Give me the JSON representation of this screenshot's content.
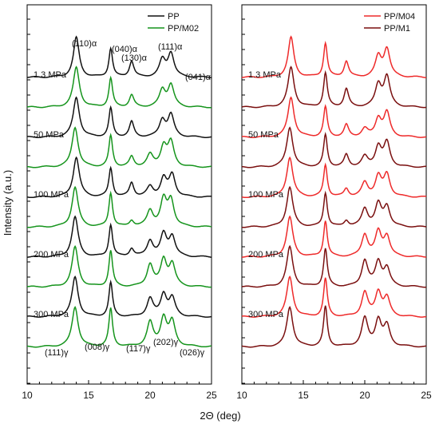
{
  "chart_data": {
    "type": "line",
    "ylabel": "Intensity (a.u.)",
    "xlabel": "2Θ (deg)",
    "xlim": [
      10,
      25
    ],
    "x_ticks": [
      "10",
      "15",
      "20",
      "25"
    ],
    "grid": false,
    "pressure_labels": [
      "1.3 MPa",
      "50 MPa",
      "100 MPa",
      "200 MPa",
      "300 MPa"
    ],
    "alpha_peaks": [
      {
        "label": "(110)α",
        "x": 14.0
      },
      {
        "label": "(040)α",
        "x": 16.9
      },
      {
        "label": "(130)α",
        "x": 18.5
      },
      {
        "label": "(111)α",
        "x": 21.2
      },
      {
        "label": "(041)α",
        "x": 21.9
      }
    ],
    "gamma_peaks": [
      {
        "label": "(111)γ",
        "x": 13.9
      },
      {
        "label": "(008)γ",
        "x": 16.8
      },
      {
        "label": "(117)γ",
        "x": 20.1
      },
      {
        "label": "(202)γ",
        "x": 21.2
      },
      {
        "label": "(026)γ",
        "x": 21.8
      }
    ],
    "panels": [
      {
        "legend_position": "top-right",
        "series": [
          {
            "name": "PP",
            "color": "#111111"
          },
          {
            "name": "PP/M02",
            "color": "#15941c"
          }
        ],
        "traces": [
          {
            "series": "PP",
            "pressure": "1.3 MPa",
            "peaks": [
              [
                14.0,
                1.0,
                0.28
              ],
              [
                16.8,
                0.72,
                0.18
              ],
              [
                18.5,
                0.4,
                0.22
              ],
              [
                21.0,
                0.42,
                0.3
              ],
              [
                21.7,
                0.6,
                0.3
              ]
            ]
          },
          {
            "series": "PP/M02",
            "pressure": "",
            "peaks": [
              [
                14.0,
                1.0,
                0.3
              ],
              [
                16.8,
                0.72,
                0.18
              ],
              [
                18.5,
                0.3,
                0.22
              ],
              [
                21.0,
                0.42,
                0.3
              ],
              [
                21.7,
                0.55,
                0.3
              ]
            ]
          },
          {
            "series": "PP",
            "pressure": "50 MPa",
            "peaks": [
              [
                14.0,
                1.0,
                0.3
              ],
              [
                16.8,
                0.72,
                0.18
              ],
              [
                18.5,
                0.38,
                0.22
              ],
              [
                21.0,
                0.42,
                0.3
              ],
              [
                21.7,
                0.55,
                0.3
              ]
            ]
          },
          {
            "series": "PP/M02",
            "pressure": "",
            "peaks": [
              [
                13.9,
                1.0,
                0.3
              ],
              [
                16.8,
                0.78,
                0.18
              ],
              [
                18.5,
                0.25,
                0.22
              ],
              [
                20.0,
                0.3,
                0.3
              ],
              [
                21.1,
                0.5,
                0.3
              ],
              [
                21.7,
                0.6,
                0.3
              ]
            ]
          },
          {
            "series": "PP",
            "pressure": "100 MPa",
            "peaks": [
              [
                14.0,
                1.0,
                0.3
              ],
              [
                16.8,
                0.72,
                0.18
              ],
              [
                18.5,
                0.35,
                0.22
              ],
              [
                20.0,
                0.25,
                0.3
              ],
              [
                21.1,
                0.45,
                0.3
              ],
              [
                21.8,
                0.55,
                0.3
              ]
            ]
          },
          {
            "series": "PP/M02",
            "pressure": "",
            "peaks": [
              [
                13.9,
                1.0,
                0.3
              ],
              [
                16.8,
                0.85,
                0.18
              ],
              [
                18.5,
                0.15,
                0.22
              ],
              [
                20.0,
                0.4,
                0.3
              ],
              [
                21.1,
                0.65,
                0.3
              ],
              [
                21.7,
                0.65,
                0.3
              ]
            ]
          },
          {
            "series": "PP",
            "pressure": "200 MPa",
            "peaks": [
              [
                13.9,
                1.0,
                0.3
              ],
              [
                16.8,
                0.8,
                0.18
              ],
              [
                18.5,
                0.2,
                0.22
              ],
              [
                20.0,
                0.4,
                0.3
              ],
              [
                21.1,
                0.55,
                0.3
              ],
              [
                21.8,
                0.5,
                0.3
              ]
            ]
          },
          {
            "series": "PP/M02",
            "pressure": "",
            "peaks": [
              [
                13.9,
                1.0,
                0.3
              ],
              [
                16.8,
                0.9,
                0.18
              ],
              [
                20.0,
                0.55,
                0.3
              ],
              [
                21.1,
                0.65,
                0.3
              ],
              [
                21.8,
                0.55,
                0.3
              ]
            ]
          },
          {
            "series": "PP",
            "pressure": "300 MPa",
            "peaks": [
              [
                13.9,
                1.0,
                0.3
              ],
              [
                16.8,
                0.85,
                0.18
              ],
              [
                20.0,
                0.45,
                0.3
              ],
              [
                21.1,
                0.55,
                0.3
              ],
              [
                21.8,
                0.45,
                0.3
              ]
            ]
          },
          {
            "series": "PP/M02",
            "pressure": "",
            "peaks": [
              [
                13.9,
                1.0,
                0.3
              ],
              [
                16.8,
                0.95,
                0.18
              ],
              [
                20.0,
                0.6,
                0.3
              ],
              [
                21.1,
                0.7,
                0.3
              ],
              [
                21.8,
                0.6,
                0.3
              ]
            ]
          }
        ]
      },
      {
        "legend_position": "top-right",
        "series": [
          {
            "name": "PP/M04",
            "color": "#ee2a2a"
          },
          {
            "name": "PP/M1",
            "color": "#7a0f0f"
          }
        ],
        "traces": [
          {
            "series": "PP/M04",
            "pressure": "1.3 MPa",
            "peaks": [
              [
                14.0,
                1.0,
                0.28
              ],
              [
                16.8,
                0.85,
                0.18
              ],
              [
                18.5,
                0.4,
                0.22
              ],
              [
                21.1,
                0.5,
                0.3
              ],
              [
                21.8,
                0.7,
                0.3
              ]
            ]
          },
          {
            "series": "PP/M1",
            "pressure": "",
            "peaks": [
              [
                14.0,
                1.0,
                0.3
              ],
              [
                16.8,
                0.85,
                0.18
              ],
              [
                18.5,
                0.45,
                0.22
              ],
              [
                21.1,
                0.55,
                0.3
              ],
              [
                21.8,
                0.75,
                0.3
              ]
            ]
          },
          {
            "series": "PP/M04",
            "pressure": "50 MPa",
            "peaks": [
              [
                14.0,
                1.0,
                0.3
              ],
              [
                16.8,
                0.75,
                0.18
              ],
              [
                18.5,
                0.3,
                0.22
              ],
              [
                20.0,
                0.2,
                0.3
              ],
              [
                21.1,
                0.45,
                0.3
              ],
              [
                21.8,
                0.6,
                0.3
              ]
            ]
          },
          {
            "series": "PP/M1",
            "pressure": "",
            "peaks": [
              [
                13.9,
                1.0,
                0.3
              ],
              [
                16.8,
                0.8,
                0.18
              ],
              [
                18.5,
                0.3,
                0.22
              ],
              [
                20.0,
                0.25,
                0.3
              ],
              [
                21.1,
                0.5,
                0.3
              ],
              [
                21.8,
                0.6,
                0.3
              ]
            ]
          },
          {
            "series": "PP/M04",
            "pressure": "100 MPa",
            "peaks": [
              [
                13.9,
                1.0,
                0.3
              ],
              [
                16.8,
                0.8,
                0.18
              ],
              [
                18.5,
                0.2,
                0.22
              ],
              [
                20.0,
                0.35,
                0.3
              ],
              [
                21.1,
                0.5,
                0.3
              ],
              [
                21.8,
                0.55,
                0.3
              ]
            ]
          },
          {
            "series": "PP/M1",
            "pressure": "",
            "peaks": [
              [
                13.9,
                1.0,
                0.3
              ],
              [
                16.8,
                0.85,
                0.18
              ],
              [
                18.5,
                0.15,
                0.22
              ],
              [
                20.0,
                0.45,
                0.3
              ],
              [
                21.1,
                0.55,
                0.3
              ],
              [
                21.8,
                0.5,
                0.3
              ]
            ]
          },
          {
            "series": "PP/M04",
            "pressure": "200 MPa",
            "peaks": [
              [
                13.9,
                1.0,
                0.3
              ],
              [
                16.8,
                0.9,
                0.18
              ],
              [
                20.0,
                0.55,
                0.3
              ],
              [
                21.1,
                0.6,
                0.3
              ],
              [
                21.8,
                0.5,
                0.3
              ]
            ]
          },
          {
            "series": "PP/M1",
            "pressure": "",
            "peaks": [
              [
                13.9,
                1.0,
                0.3
              ],
              [
                16.8,
                0.95,
                0.18
              ],
              [
                20.0,
                0.65,
                0.3
              ],
              [
                21.1,
                0.6,
                0.3
              ],
              [
                21.8,
                0.45,
                0.3
              ]
            ]
          },
          {
            "series": "PP/M04",
            "pressure": "300 MPa",
            "peaks": [
              [
                13.9,
                1.0,
                0.3
              ],
              [
                16.8,
                0.95,
                0.18
              ],
              [
                20.0,
                0.6,
                0.3
              ],
              [
                21.1,
                0.6,
                0.3
              ],
              [
                21.8,
                0.45,
                0.3
              ]
            ]
          },
          {
            "series": "PP/M1",
            "pressure": "",
            "peaks": [
              [
                13.9,
                1.0,
                0.3
              ],
              [
                16.8,
                1.0,
                0.18
              ],
              [
                20.0,
                0.7,
                0.3
              ],
              [
                21.1,
                0.65,
                0.3
              ],
              [
                21.8,
                0.5,
                0.3
              ]
            ]
          }
        ]
      }
    ]
  }
}
